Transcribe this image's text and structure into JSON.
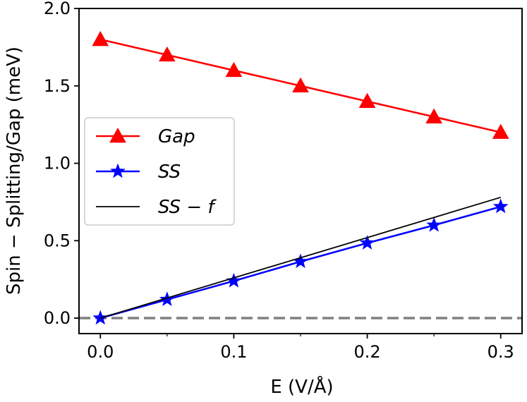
{
  "chart_data": {
    "type": "line",
    "xlabel": "E (V/Å)",
    "ylabel": "Spin − Splitting/Gap (meV)",
    "xlim": [
      -0.016,
      0.316
    ],
    "ylim": [
      -0.1,
      2.0
    ],
    "xticks": [
      "0.0",
      "0.1",
      "0.2",
      "0.3"
    ],
    "xtick_values": [
      0.0,
      0.1,
      0.2,
      0.3
    ],
    "xminor_ticks": [
      0.05,
      0.15,
      0.25
    ],
    "yticks": [
      "0.0",
      "0.5",
      "1.0",
      "1.5",
      "2.0"
    ],
    "ytick_values": [
      0.0,
      0.5,
      1.0,
      1.5,
      2.0
    ],
    "grid": false,
    "legend_position": "center-left",
    "reference_line": {
      "y": 0.0,
      "color": "#808080",
      "style": "dashed"
    },
    "series": [
      {
        "name": "Gap",
        "color": "#ff0000",
        "marker": "triangle",
        "x": [
          0.0,
          0.05,
          0.1,
          0.15,
          0.2,
          0.25,
          0.3
        ],
        "y": [
          1.8,
          1.7,
          1.6,
          1.5,
          1.4,
          1.3,
          1.2
        ]
      },
      {
        "name": "SS",
        "color": "#0000ff",
        "marker": "star",
        "x": [
          0.0,
          0.05,
          0.1,
          0.15,
          0.2,
          0.25,
          0.3
        ],
        "y": [
          0.0,
          0.12,
          0.24,
          0.365,
          0.485,
          0.6,
          0.72
        ]
      },
      {
        "name": "SS − f",
        "color": "#000000",
        "marker": "none",
        "x": [
          0.0,
          0.3
        ],
        "y": [
          0.0,
          0.78
        ]
      }
    ]
  }
}
